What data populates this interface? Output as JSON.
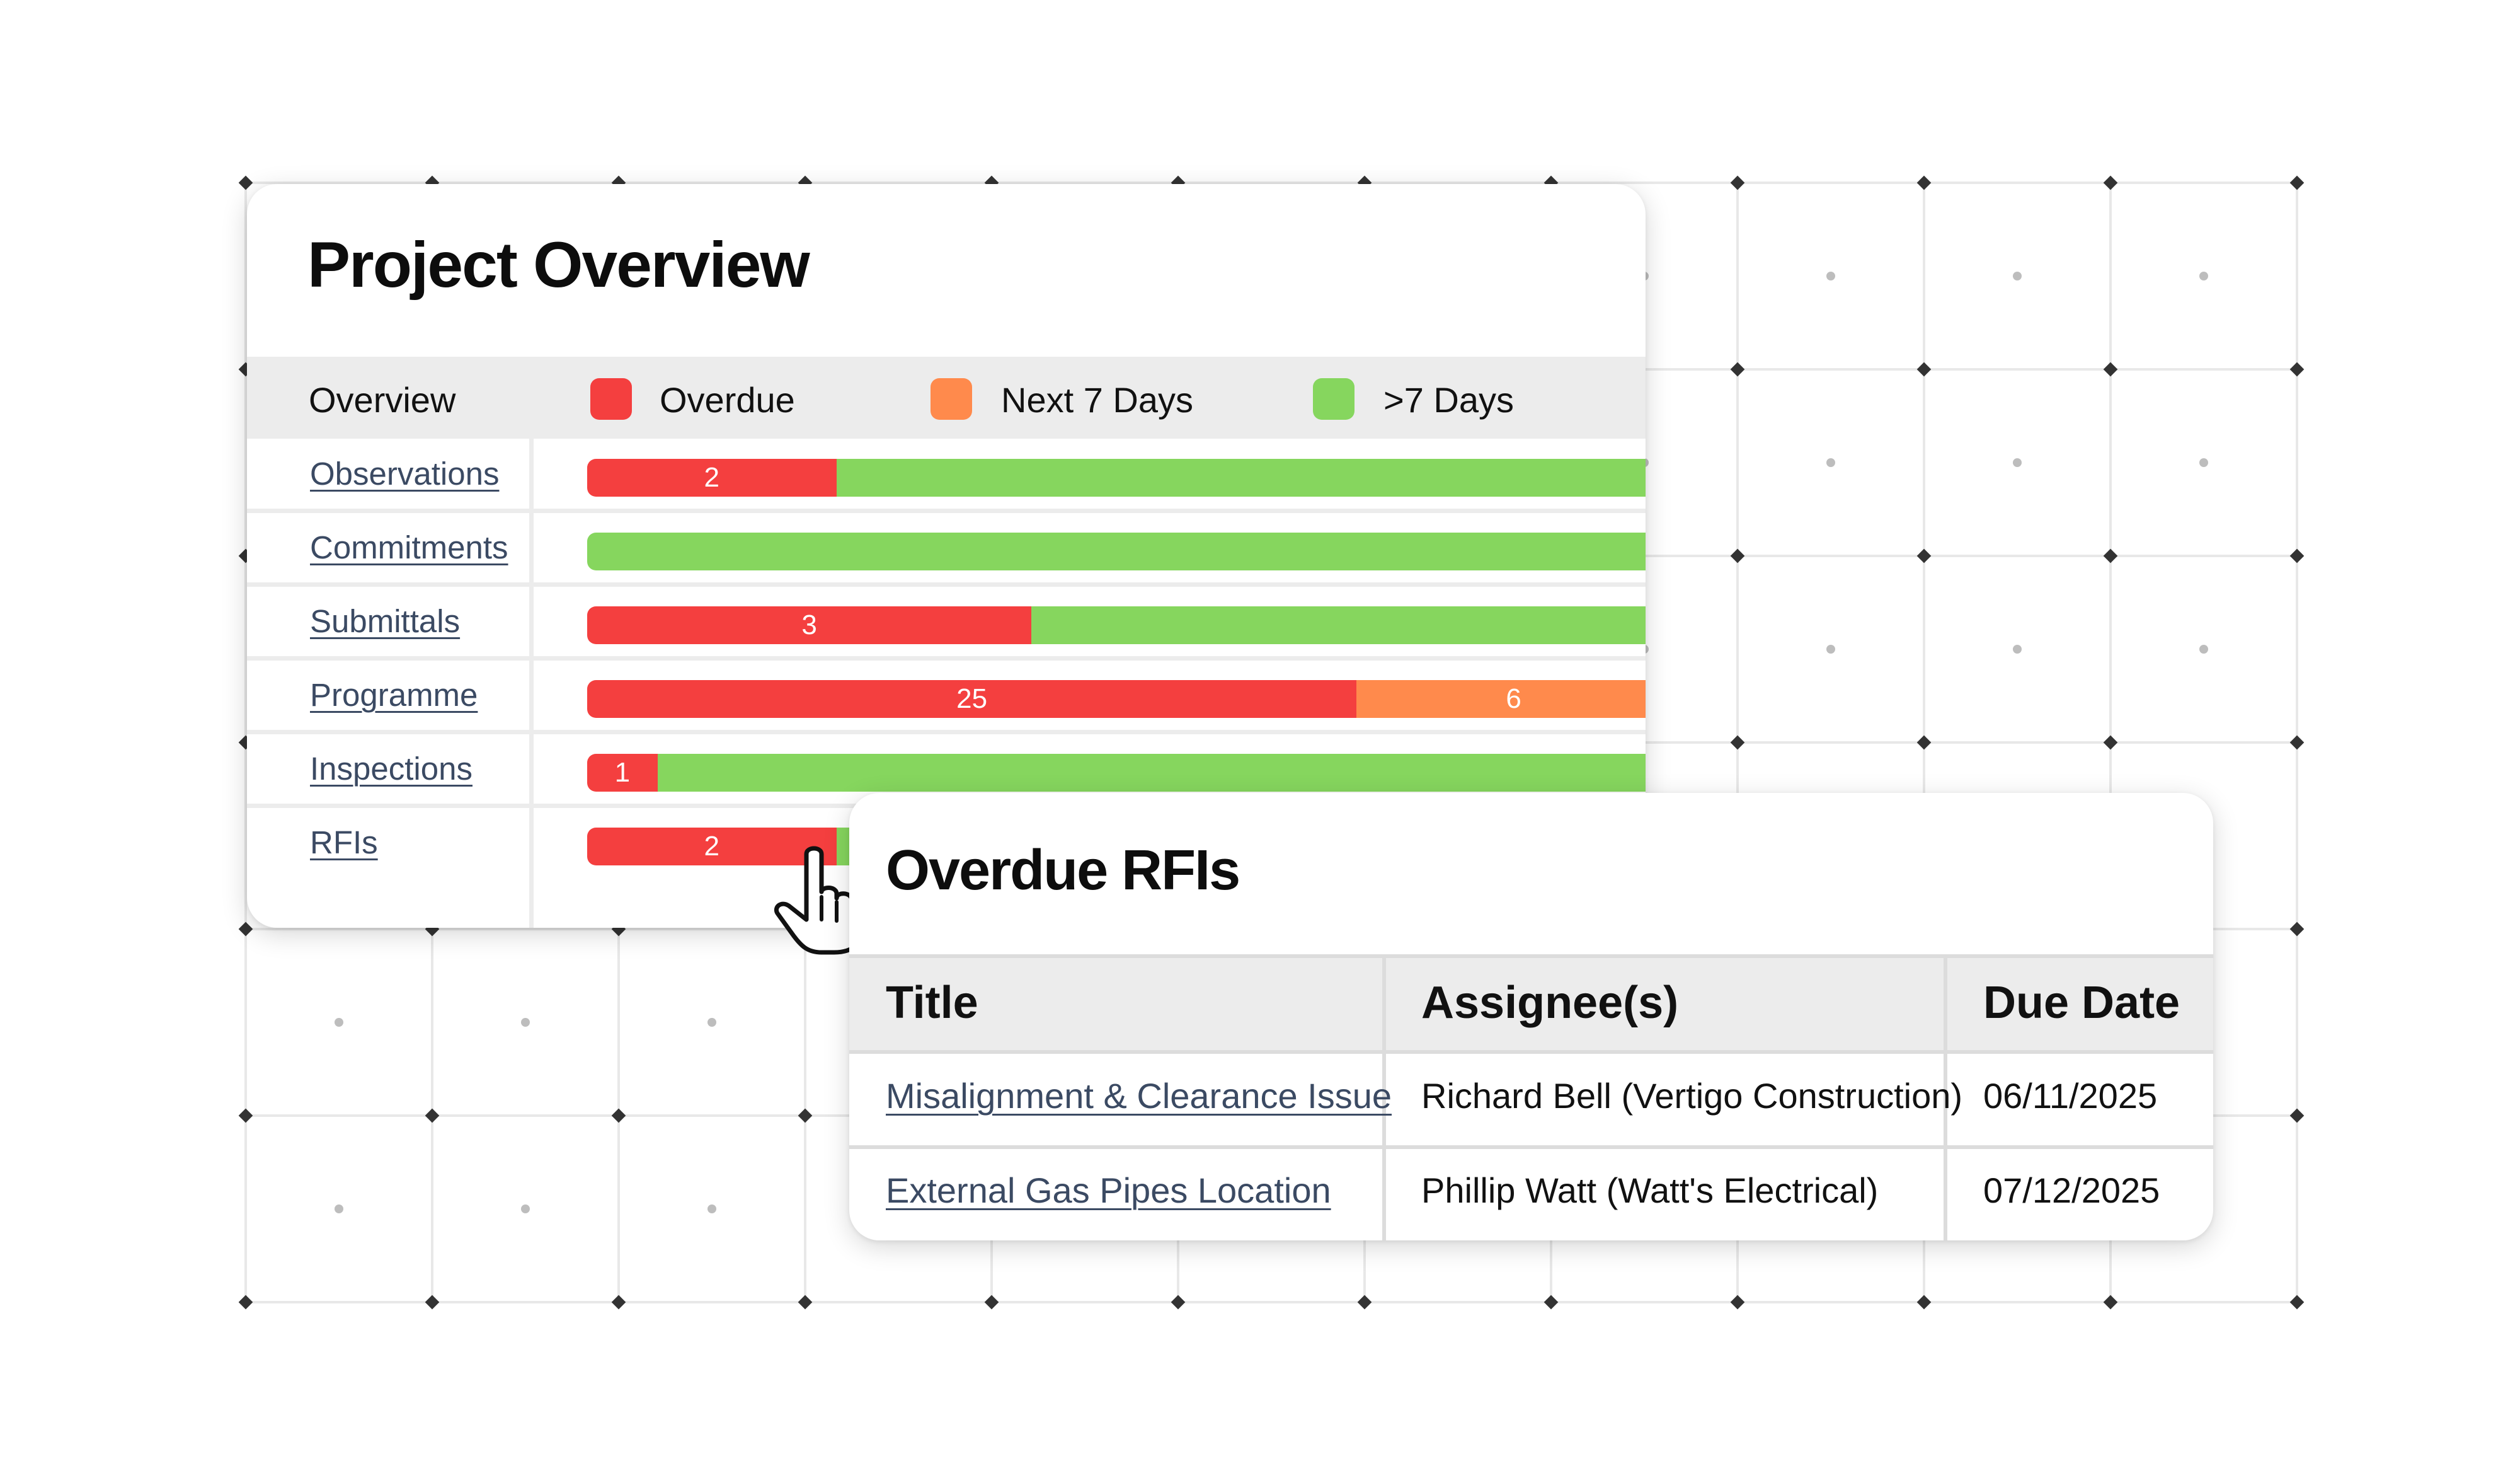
{
  "overview": {
    "title": "Project Overview",
    "legend": {
      "header": "Overview",
      "items": [
        {
          "label": "Overdue",
          "color": "#f43f3f"
        },
        {
          "label": "Next 7 Days",
          "color": "#ff8a4c"
        },
        {
          "label": ">7 Days",
          "color": "#86d65e"
        }
      ]
    },
    "rows": [
      {
        "label": "Observations",
        "segments": [
          {
            "kind": "overdue",
            "value": 2,
            "label": "2",
            "fraction": 0.23
          },
          {
            "kind": "later",
            "value": null,
            "label": "",
            "fraction": 0.77
          }
        ]
      },
      {
        "label": "Commitments",
        "segments": [
          {
            "kind": "later",
            "value": null,
            "label": "",
            "fraction": 1.0
          }
        ]
      },
      {
        "label": "Submittals",
        "segments": [
          {
            "kind": "overdue",
            "value": 3,
            "label": "3",
            "fraction": 0.41
          },
          {
            "kind": "later",
            "value": null,
            "label": "",
            "fraction": 0.59
          }
        ]
      },
      {
        "label": "Programme",
        "segments": [
          {
            "kind": "overdue",
            "value": 25,
            "label": "25",
            "fraction": 0.71
          },
          {
            "kind": "next7",
            "value": 6,
            "label": "6",
            "fraction": 0.29
          }
        ]
      },
      {
        "label": "Inspections ",
        "segments": [
          {
            "kind": "overdue",
            "value": 1,
            "label": "1",
            "fraction": 0.065
          },
          {
            "kind": "later",
            "value": null,
            "label": "",
            "fraction": 0.935
          }
        ]
      },
      {
        "label": "RFIs",
        "segments": [
          {
            "kind": "overdue",
            "value": 2,
            "label": "2",
            "fraction": 0.23
          },
          {
            "kind": "later",
            "value": null,
            "label": "",
            "fraction": 0.77
          }
        ]
      }
    ]
  },
  "rfis": {
    "title": "Overdue RFIs",
    "columns": [
      "Title",
      "Assignee(s)",
      "Due Date"
    ],
    "rows": [
      {
        "title": "Misalignment & Clearance Issue",
        "assignee": "Richard Bell (Vertigo Construction)",
        "due": "06/11/2025"
      },
      {
        "title": "External Gas Pipes Location",
        "assignee": "Phillip Watt (Watt's Electrical)",
        "due": "07/12/2025"
      }
    ]
  },
  "cursor_icon": "hand-pointer-icon",
  "colors": {
    "overdue": "#f43f3f",
    "next7": "#ff8a4c",
    "later": "#86d65e",
    "link": "#3b4a63"
  }
}
